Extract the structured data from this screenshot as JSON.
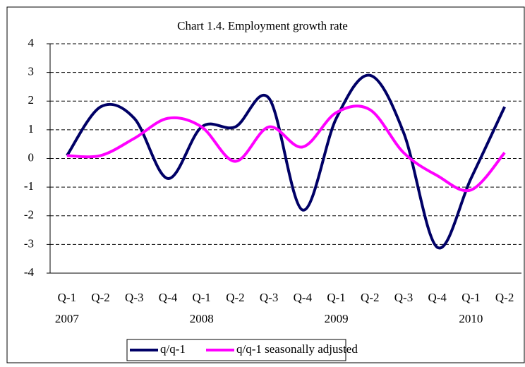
{
  "chart_data": {
    "type": "line",
    "title": "Chart 1.4. Employment growth rate",
    "categories": [
      "Q-1",
      "Q-2",
      "Q-3",
      "Q-4",
      "Q-1",
      "Q-2",
      "Q-3",
      "Q-4",
      "Q-1",
      "Q-2",
      "Q-3",
      "Q-4",
      "Q-1",
      "Q-2"
    ],
    "years": [
      "2007",
      "2008",
      "2009",
      "2010"
    ],
    "series": [
      {
        "name": "q/q-1",
        "color": "#000066",
        "values": [
          0.1,
          1.8,
          1.4,
          -0.7,
          1.1,
          1.1,
          2.1,
          -1.8,
          1.4,
          2.9,
          0.9,
          -3.1,
          -0.7,
          1.8
        ]
      },
      {
        "name": "q/q-1 seasonally adjusted",
        "color": "#ff00ff",
        "values": [
          0.1,
          0.1,
          0.7,
          1.4,
          1.1,
          -0.1,
          1.1,
          0.4,
          1.6,
          1.7,
          0.2,
          -0.6,
          -1.1,
          0.2
        ]
      }
    ],
    "ylim": [
      -4,
      4
    ],
    "yticks": [
      -4,
      -3,
      -2,
      -1,
      0,
      1,
      2,
      3,
      4
    ],
    "grid": true,
    "legend": "bottom"
  }
}
